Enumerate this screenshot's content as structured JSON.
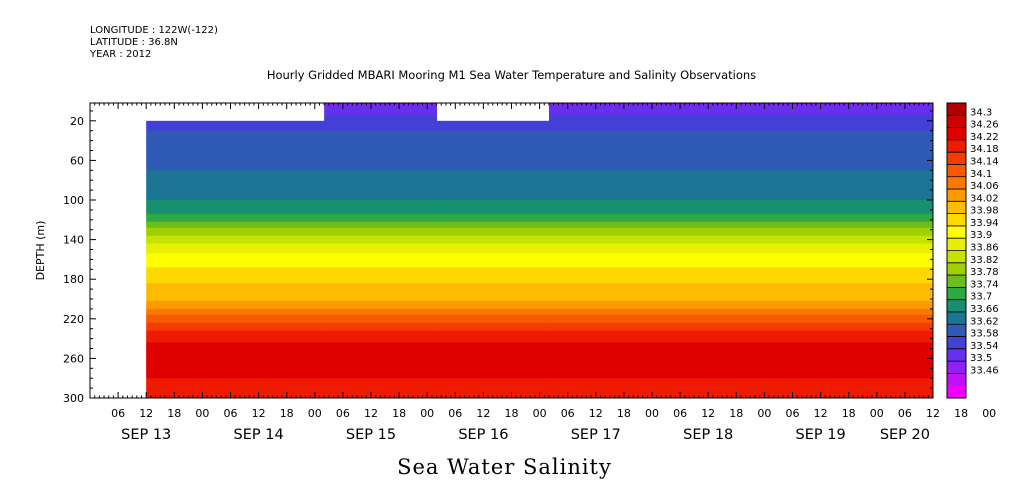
{
  "meta": {
    "longitude": "LONGITUDE : 122W(-122)",
    "latitude": "LATITUDE : 36.8N",
    "year": "YEAR : 2012"
  },
  "chart_data": {
    "type": "heatmap",
    "title": "Hourly Gridded MBARI Mooring M1 Sea Water Temperature and Salinity Observations",
    "xlabel": "Sea Water Salinity",
    "ylabel": "DEPTH (m)",
    "y_ticks": [
      20,
      60,
      100,
      140,
      180,
      220,
      260,
      300
    ],
    "ylim": [
      300,
      2
    ],
    "x_hour_ticks": [
      "06",
      "12",
      "18",
      "00",
      "06",
      "12",
      "18",
      "00",
      "06",
      "12",
      "18",
      "00",
      "06",
      "12",
      "18",
      "00",
      "06",
      "12",
      "18",
      "00",
      "06",
      "12",
      "18",
      "00",
      "06",
      "12",
      "18",
      "00",
      "06",
      "12",
      "18",
      "00"
    ],
    "x_date_labels": [
      {
        "label": "SEP 13",
        "hour": 12
      },
      {
        "label": "SEP 14",
        "hour": 36
      },
      {
        "label": "SEP 15",
        "hour": 60
      },
      {
        "label": "SEP 16",
        "hour": 84
      },
      {
        "label": "SEP 17",
        "hour": 108
      },
      {
        "label": "SEP 18",
        "hour": 132
      },
      {
        "label": "SEP 19",
        "hour": 156
      },
      {
        "label": "SEP 20",
        "hour": 174
      }
    ],
    "xlim_hours": [
      0,
      180
    ],
    "data_start_hour": 12,
    "colorbar": {
      "levels": [
        34.3,
        34.26,
        34.22,
        34.18,
        34.14,
        34.1,
        34.06,
        34.02,
        33.98,
        33.94,
        33.9,
        33.86,
        33.82,
        33.78,
        33.74,
        33.7,
        33.66,
        33.62,
        33.58,
        33.54,
        33.5,
        33.46
      ],
      "colors": [
        "#b00000",
        "#cc0000",
        "#e00000",
        "#ef1a00",
        "#f53c00",
        "#f85a00",
        "#fb7800",
        "#fd9a00",
        "#ffbb00",
        "#ffd800",
        "#ffff00",
        "#e6f000",
        "#c6e200",
        "#9fd000",
        "#6ebd1a",
        "#2ea843",
        "#169070",
        "#1d7595",
        "#2f5ab6",
        "#4340d6",
        "#6530ee",
        "#9020f6",
        "#c010f8",
        "#ee00ff"
      ]
    },
    "segments": [
      {
        "start": 12,
        "end": 50,
        "top_depth": 20
      },
      {
        "start": 50,
        "end": 74,
        "top_depth": 2
      },
      {
        "start": 74,
        "end": 98,
        "top_depth": 20
      },
      {
        "start": 98,
        "end": 180,
        "top_depth": 2
      }
    ],
    "profile": [
      {
        "depth": 2,
        "salinity": 33.53
      },
      {
        "depth": 10,
        "salinity": 33.56
      },
      {
        "depth": 20,
        "salinity": 33.61
      },
      {
        "depth": 40,
        "salinity": 33.63
      },
      {
        "depth": 60,
        "salinity": 33.65
      },
      {
        "depth": 80,
        "salinity": 33.67
      },
      {
        "depth": 100,
        "salinity": 33.7
      },
      {
        "depth": 115,
        "salinity": 33.74
      },
      {
        "depth": 130,
        "salinity": 33.83
      },
      {
        "depth": 145,
        "salinity": 33.9
      },
      {
        "depth": 160,
        "salinity": 33.96
      },
      {
        "depth": 175,
        "salinity": 34.0
      },
      {
        "depth": 190,
        "salinity": 34.03
      },
      {
        "depth": 205,
        "salinity": 34.07
      },
      {
        "depth": 220,
        "salinity": 34.16
      },
      {
        "depth": 235,
        "salinity": 34.23
      },
      {
        "depth": 250,
        "salinity": 34.28
      },
      {
        "depth": 265,
        "salinity": 34.29
      },
      {
        "depth": 280,
        "salinity": 34.26
      },
      {
        "depth": 300,
        "salinity": 34.24
      }
    ]
  }
}
